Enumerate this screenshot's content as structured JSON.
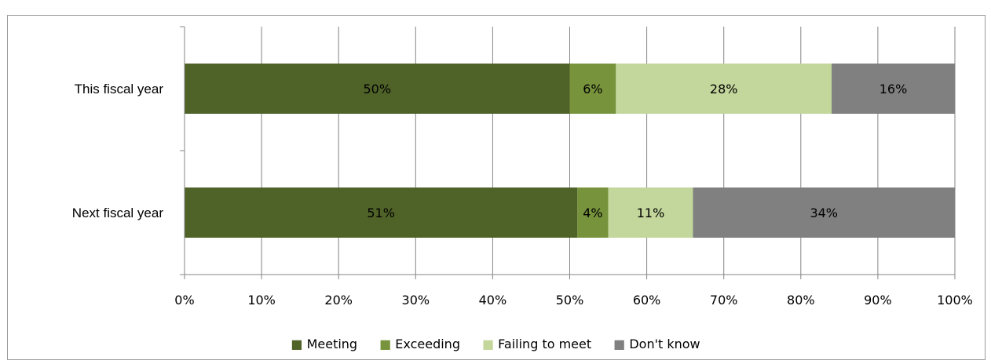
{
  "caption_fragment": "",
  "chart_data": {
    "type": "bar",
    "orientation": "horizontal",
    "stacked": true,
    "categories": [
      "This fiscal year",
      "Next fiscal year"
    ],
    "series": [
      {
        "name": "Meeting",
        "values": [
          50,
          51
        ],
        "labels": [
          "50%",
          "51%"
        ],
        "color": "#4f6228"
      },
      {
        "name": "Exceeding",
        "values": [
          6,
          4
        ],
        "labels": [
          "6%",
          "4%"
        ],
        "color": "#77933c"
      },
      {
        "name": "Failing to meet",
        "values": [
          28,
          11
        ],
        "labels": [
          "28%",
          "11%"
        ],
        "color": "#c3d69b"
      },
      {
        "name": "Don't know",
        "values": [
          16,
          34
        ],
        "labels": [
          "16%",
          "34%"
        ],
        "color": "#808080"
      }
    ],
    "xlim": [
      0,
      100
    ],
    "xticks": [
      "0%",
      "10%",
      "20%",
      "30%",
      "40%",
      "50%",
      "60%",
      "70%",
      "80%",
      "90%",
      "100%"
    ],
    "grid": true,
    "legend_position": "bottom",
    "legend_marker": "■"
  }
}
